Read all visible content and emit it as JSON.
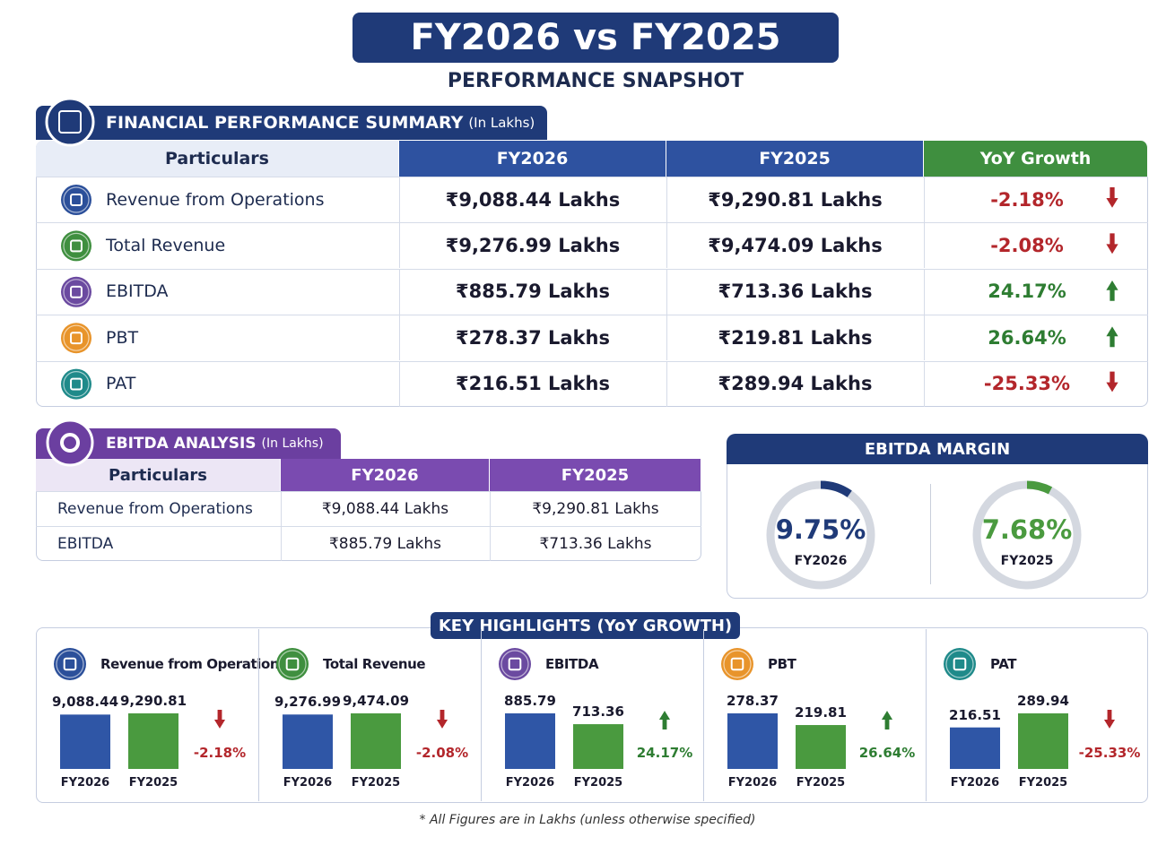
{
  "title": "FY2026 vs FY2025",
  "subtitle": "PERFORMANCE SNAPSHOT",
  "summary": {
    "title": "FINANCIAL PERFORMANCE SUMMARY",
    "unit": "(In Lakhs)",
    "columns": [
      "Particulars",
      "FY2026",
      "FY2025",
      "YoY Growth"
    ],
    "rows": [
      [
        "Revenue from Operations",
        "₹9,088.44 Lakhs",
        "₹9,290.81 Lakhs",
        "-2.18%"
      ],
      [
        "Total Revenue",
        "₹9,276.99 Lakhs",
        "₹9,474.09 Lakhs",
        "-2.08%"
      ],
      [
        "EBITDA",
        "₹885.79 Lakhs",
        "₹713.36 Lakhs",
        "24.17%"
      ],
      [
        "PBT",
        "₹278.37 Lakhs",
        "₹219.81 Lakhs",
        "26.64%"
      ],
      [
        "PAT",
        "₹216.51 Lakhs",
        "₹289.94 Lakhs",
        "-25.33%"
      ]
    ]
  },
  "ebitda_analysis": {
    "title": "EBITDA ANALYSIS",
    "unit": "(In Lakhs)",
    "columns": [
      "Particulars",
      "FY2026",
      "FY2025"
    ],
    "rows": [
      [
        "Revenue from Operations",
        "₹9,088.44 Lakhs",
        "₹9,290.81 Lakhs"
      ],
      [
        "EBITDA",
        "₹885.79 Lakhs",
        "₹713.36 Lakhs"
      ]
    ]
  },
  "ebitda_margin": {
    "title": "EBITDA MARGIN",
    "items": [
      {
        "value": 9.75,
        "label": "9.75%",
        "color": "#1f3a78"
      },
      {
        "value": 7.68,
        "label": "7.68%",
        "color": "#4a9a3f"
      }
    ]
  },
  "highlights": {
    "title": "KEY HIGHLIGHTS (YoY GROWTH)",
    "items": [
      {
        "values": [
          9088.44,
          9290.81
        ],
        "value_labels": [
          "9,088.44",
          "9,290.81"
        ],
        "growth": -2.18
      },
      {
        "values": [
          9276.99,
          9474.09
        ],
        "value_labels": [
          "9,276.99",
          "9,474.09"
        ],
        "growth": -2.08
      },
      {
        "values": [
          885.79,
          713.36
        ],
        "value_labels": [
          "885.79",
          "713.36"
        ],
        "growth": 24.17
      },
      {
        "values": [
          278.37,
          219.81
        ],
        "value_labels": [
          "278.37",
          "219.81"
        ],
        "growth": 26.64
      },
      {
        "values": [
          216.51,
          289.94
        ],
        "value_labels": [
          "216.51",
          "289.94"
        ],
        "growth": -25.33
      }
    ]
  },
  "footnote": "* All Figures are in Lakhs (unless otherwise specified)"
}
